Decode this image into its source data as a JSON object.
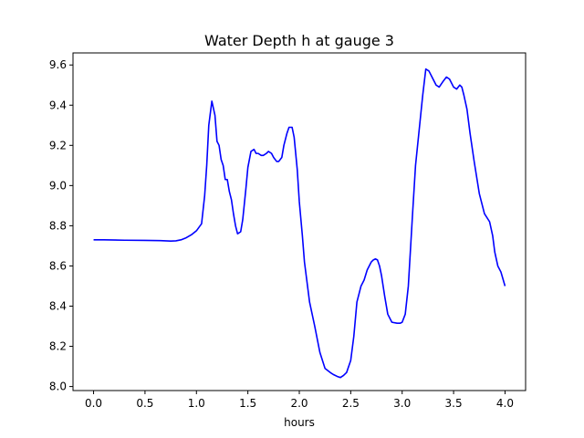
{
  "chart_data": {
    "type": "line",
    "title": "Water Depth h at gauge 3",
    "xlabel": "hours",
    "ylabel": "",
    "xlim": [
      -0.2,
      4.2
    ],
    "ylim": [
      7.98,
      9.66
    ],
    "xticks": [
      0.0,
      0.5,
      1.0,
      1.5,
      2.0,
      2.5,
      3.0,
      3.5,
      4.0
    ],
    "xtick_labels": [
      "0.0",
      "0.5",
      "1.0",
      "1.5",
      "2.0",
      "2.5",
      "3.0",
      "3.5",
      "4.0"
    ],
    "yticks": [
      8.0,
      8.2,
      8.4,
      8.6,
      8.8,
      9.0,
      9.2,
      9.4,
      9.6
    ],
    "ytick_labels": [
      "8.0",
      "8.2",
      "8.4",
      "8.6",
      "8.8",
      "9.0",
      "9.2",
      "9.4",
      "9.6"
    ],
    "grid": false,
    "series": [
      {
        "color": "#0000ff",
        "x": [
          0.0,
          0.1,
          0.3,
          0.5,
          0.65,
          0.75,
          0.8,
          0.85,
          0.9,
          0.95,
          1.0,
          1.05,
          1.08,
          1.1,
          1.12,
          1.15,
          1.18,
          1.2,
          1.22,
          1.24,
          1.26,
          1.28,
          1.3,
          1.32,
          1.34,
          1.36,
          1.38,
          1.4,
          1.43,
          1.45,
          1.48,
          1.5,
          1.53,
          1.56,
          1.58,
          1.6,
          1.63,
          1.65,
          1.68,
          1.7,
          1.73,
          1.75,
          1.78,
          1.8,
          1.83,
          1.85,
          1.88,
          1.9,
          1.93,
          1.95,
          1.98,
          2.0,
          2.03,
          2.05,
          2.1,
          2.15,
          2.2,
          2.25,
          2.3,
          2.33,
          2.37,
          2.4,
          2.43,
          2.46,
          2.5,
          2.53,
          2.56,
          2.6,
          2.63,
          2.66,
          2.7,
          2.72,
          2.74,
          2.76,
          2.78,
          2.8,
          2.83,
          2.86,
          2.9,
          2.95,
          2.98,
          3.0,
          3.03,
          3.06,
          3.1,
          3.13,
          3.16,
          3.2,
          3.23,
          3.26,
          3.3,
          3.33,
          3.36,
          3.4,
          3.43,
          3.46,
          3.5,
          3.53,
          3.56,
          3.58,
          3.6,
          3.63,
          3.66,
          3.7,
          3.75,
          3.8,
          3.85,
          3.88,
          3.9,
          3.93,
          3.96,
          4.0
        ],
        "y": [
          8.73,
          8.73,
          8.728,
          8.727,
          8.726,
          8.724,
          8.725,
          8.73,
          8.74,
          8.755,
          8.775,
          8.81,
          8.95,
          9.1,
          9.3,
          9.42,
          9.35,
          9.22,
          9.2,
          9.13,
          9.1,
          9.03,
          9.03,
          8.97,
          8.93,
          8.86,
          8.8,
          8.76,
          8.77,
          8.83,
          8.98,
          9.09,
          9.17,
          9.18,
          9.16,
          9.16,
          9.15,
          9.15,
          9.16,
          9.17,
          9.16,
          9.14,
          9.12,
          9.12,
          9.14,
          9.2,
          9.26,
          9.29,
          9.29,
          9.24,
          9.08,
          8.92,
          8.75,
          8.62,
          8.42,
          8.3,
          8.17,
          8.09,
          8.07,
          8.06,
          8.05,
          8.045,
          8.055,
          8.07,
          8.13,
          8.25,
          8.42,
          8.5,
          8.53,
          8.58,
          8.62,
          8.63,
          8.635,
          8.63,
          8.6,
          8.55,
          8.45,
          8.36,
          8.32,
          8.315,
          8.315,
          8.32,
          8.36,
          8.5,
          8.85,
          9.1,
          9.25,
          9.45,
          9.58,
          9.57,
          9.53,
          9.5,
          9.49,
          9.52,
          9.54,
          9.53,
          9.49,
          9.48,
          9.5,
          9.49,
          9.45,
          9.38,
          9.26,
          9.12,
          8.96,
          8.86,
          8.82,
          8.75,
          8.67,
          8.6,
          8.57,
          8.5
        ]
      }
    ]
  }
}
